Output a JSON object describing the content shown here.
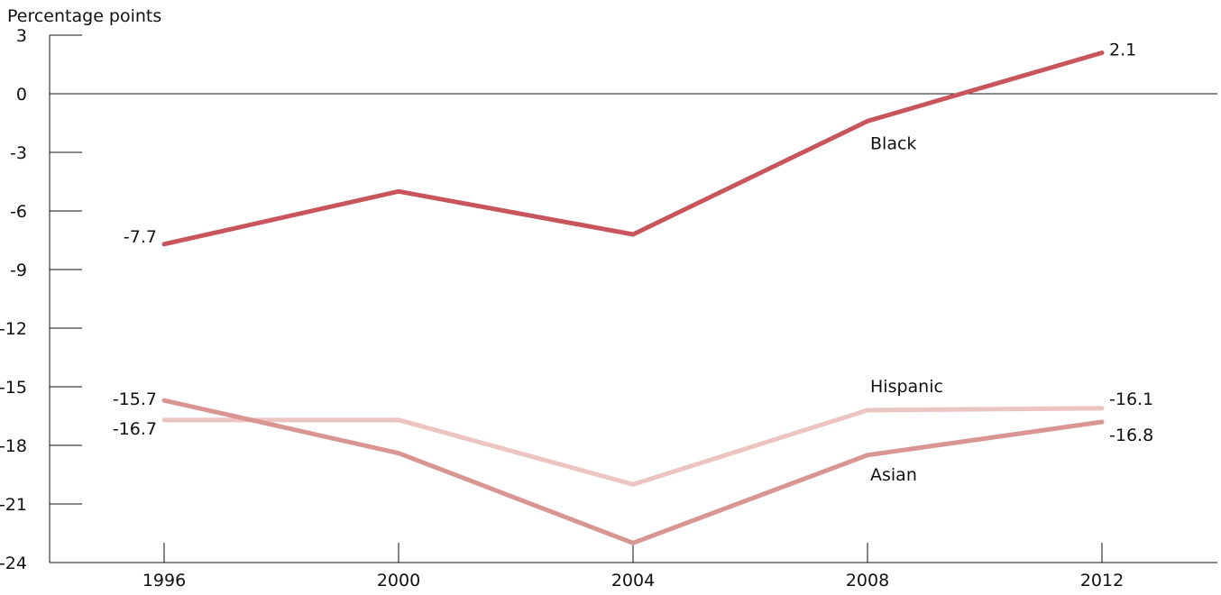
{
  "chart_data": {
    "type": "line",
    "title": "",
    "ylabel": "Percentage points",
    "xlabel": "",
    "x": [
      "1996",
      "2000",
      "2004",
      "2008",
      "2012"
    ],
    "ylim": [
      -24,
      3
    ],
    "yticks": [
      "3",
      "0",
      "-3",
      "-6",
      "-9",
      "-12",
      "-15",
      "-18",
      "-21",
      "-24"
    ],
    "grid": false,
    "legend": "direct labels on lines",
    "series": [
      {
        "name": "Black",
        "color": "#c9555c",
        "values": [
          -7.7,
          -5.0,
          -7.2,
          -1.4,
          2.1
        ],
        "start_label": "-7.7",
        "end_label": "2.1"
      },
      {
        "name": "Hispanic",
        "color": "#ecc4c0",
        "values": [
          -16.7,
          -16.7,
          -20.0,
          -16.2,
          -16.1
        ],
        "start_label": "-16.7",
        "end_label": "-16.1"
      },
      {
        "name": "Asian",
        "color": "#d99592",
        "values": [
          -15.7,
          -18.4,
          -23.0,
          -18.5,
          -16.8
        ],
        "start_label": "-15.7",
        "end_label": "-16.8"
      }
    ]
  }
}
